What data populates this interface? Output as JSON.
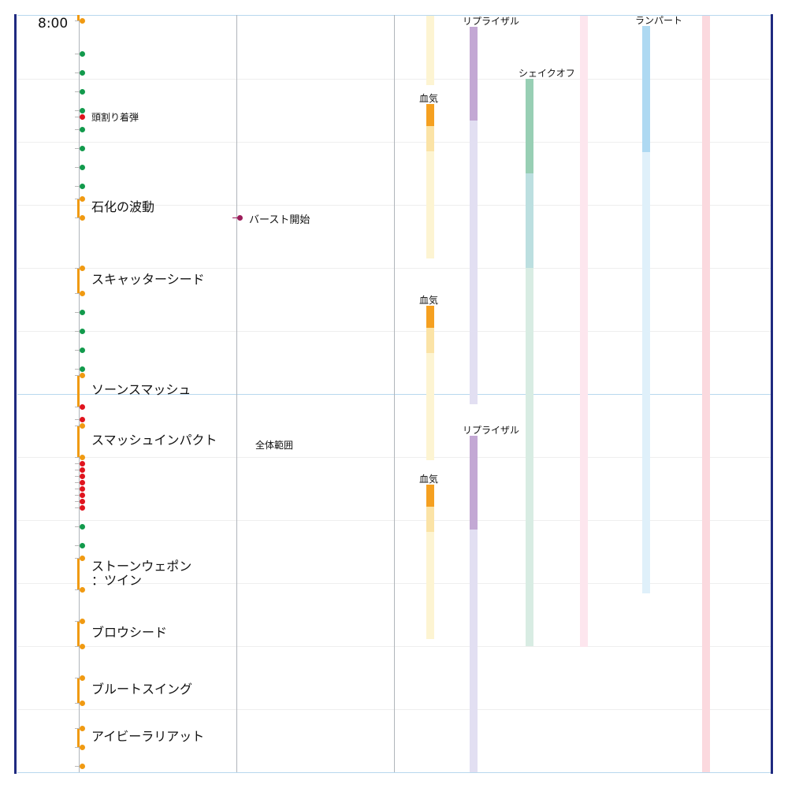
{
  "time_label": "8:00",
  "colors": {
    "frame": "#1f2a80",
    "grid_major": "#b8d8ee",
    "grid_minor": "#eeeeee",
    "column_line": "#b0b5bb",
    "orange": "#f09a12",
    "green": "#129a4c",
    "red": "#e0141e",
    "burst": "#9c1c5a",
    "tick": "#b8b8b8"
  },
  "boss_events": [
    {
      "label": "頭割り着弾",
      "kind": "small",
      "at": 148
    },
    {
      "label": "石化の波動",
      "kind": "large",
      "from": 252,
      "to": 276
    },
    {
      "label": "スキャッターシード",
      "kind": "large",
      "from": 340,
      "to": 372
    },
    {
      "label": "ソーンスマッシュ",
      "kind": "large",
      "from": 476,
      "to": 516
    },
    {
      "label": "スマッシュインパクト",
      "kind": "large",
      "from": 540,
      "to": 580
    },
    {
      "label": "ストーンウェポン\n：ツイン",
      "kind": "large",
      "from": 708,
      "to": 748
    },
    {
      "label": "ブロウシード",
      "kind": "large",
      "from": 788,
      "to": 820
    },
    {
      "label": "ブルートスイング",
      "kind": "large",
      "from": 860,
      "to": 892
    },
    {
      "label": "アイビーラリアット",
      "kind": "large",
      "from": 924,
      "to": 948
    }
  ],
  "orange_dots": [
    26,
    252,
    276,
    340,
    372,
    476,
    540,
    580,
    708,
    748,
    788,
    820,
    860,
    892,
    924,
    948,
    972
  ],
  "green_dots": [
    68,
    92,
    116,
    140,
    164,
    188,
    212,
    236,
    396,
    420,
    444,
    468,
    668,
    692
  ],
  "red_dots": [
    148,
    516,
    532,
    588,
    596,
    604,
    612,
    620,
    628,
    636,
    644
  ],
  "markers": [
    {
      "label": "バースト開始",
      "at": 276
    }
  ],
  "notes": [
    {
      "label": "全体範囲",
      "at": 564
    }
  ],
  "bar_columns": [
    {
      "name": "blood",
      "segments": [
        {
          "label": "",
          "from": 20,
          "to": 108,
          "color": "#fdf4d2"
        },
        {
          "label": "血気",
          "from": 132,
          "to": 160,
          "color": "#f5a020"
        },
        {
          "label": "",
          "from": 160,
          "to": 192,
          "color": "#fbe3a6"
        },
        {
          "label": "",
          "from": 192,
          "to": 328,
          "color": "#fdf4d2"
        },
        {
          "label": "血気",
          "from": 388,
          "to": 416,
          "color": "#f5a020"
        },
        {
          "label": "",
          "from": 416,
          "to": 448,
          "color": "#fbe3a6"
        },
        {
          "label": "",
          "from": 448,
          "to": 584,
          "color": "#fdf4d2"
        },
        {
          "label": "血気",
          "from": 615,
          "to": 643,
          "color": "#f5a020"
        },
        {
          "label": "",
          "from": 643,
          "to": 675,
          "color": "#fbe3a6"
        },
        {
          "label": "",
          "from": 675,
          "to": 811,
          "color": "#fdf4d2"
        }
      ]
    },
    {
      "name": "reprisal",
      "segments": [
        {
          "label": "リプライザル",
          "from": 34,
          "to": 153,
          "color": "#c3a8d4"
        },
        {
          "label": "",
          "from": 153,
          "to": 513,
          "color": "#e2dff2"
        },
        {
          "label": "リプライザル",
          "from": 553,
          "to": 672,
          "color": "#c3a8d4"
        },
        {
          "label": "",
          "from": 672,
          "to": 980,
          "color": "#e2dff2"
        }
      ]
    },
    {
      "name": "shake",
      "segments": [
        {
          "label": "シェイクオフ",
          "from": 100,
          "to": 220,
          "color": "#98cfb4"
        },
        {
          "label": "",
          "from": 220,
          "to": 340,
          "color": "#bcdfe0"
        },
        {
          "label": "",
          "from": 340,
          "to": 820,
          "color": "#d8ece3"
        }
      ]
    },
    {
      "name": "pink",
      "segments": [
        {
          "label": "",
          "from": 20,
          "to": 821,
          "color": "#fde6ee"
        }
      ]
    },
    {
      "name": "rampart",
      "segments": [
        {
          "label": "ランパート",
          "from": 33,
          "to": 193,
          "color": "#aed9f2"
        },
        {
          "label": "",
          "from": 193,
          "to": 753,
          "color": "#dff0fa"
        }
      ]
    },
    {
      "name": "pink-dark",
      "segments": [
        {
          "label": "",
          "from": 20,
          "to": 980,
          "color": "#fbd9de"
        }
      ]
    }
  ]
}
